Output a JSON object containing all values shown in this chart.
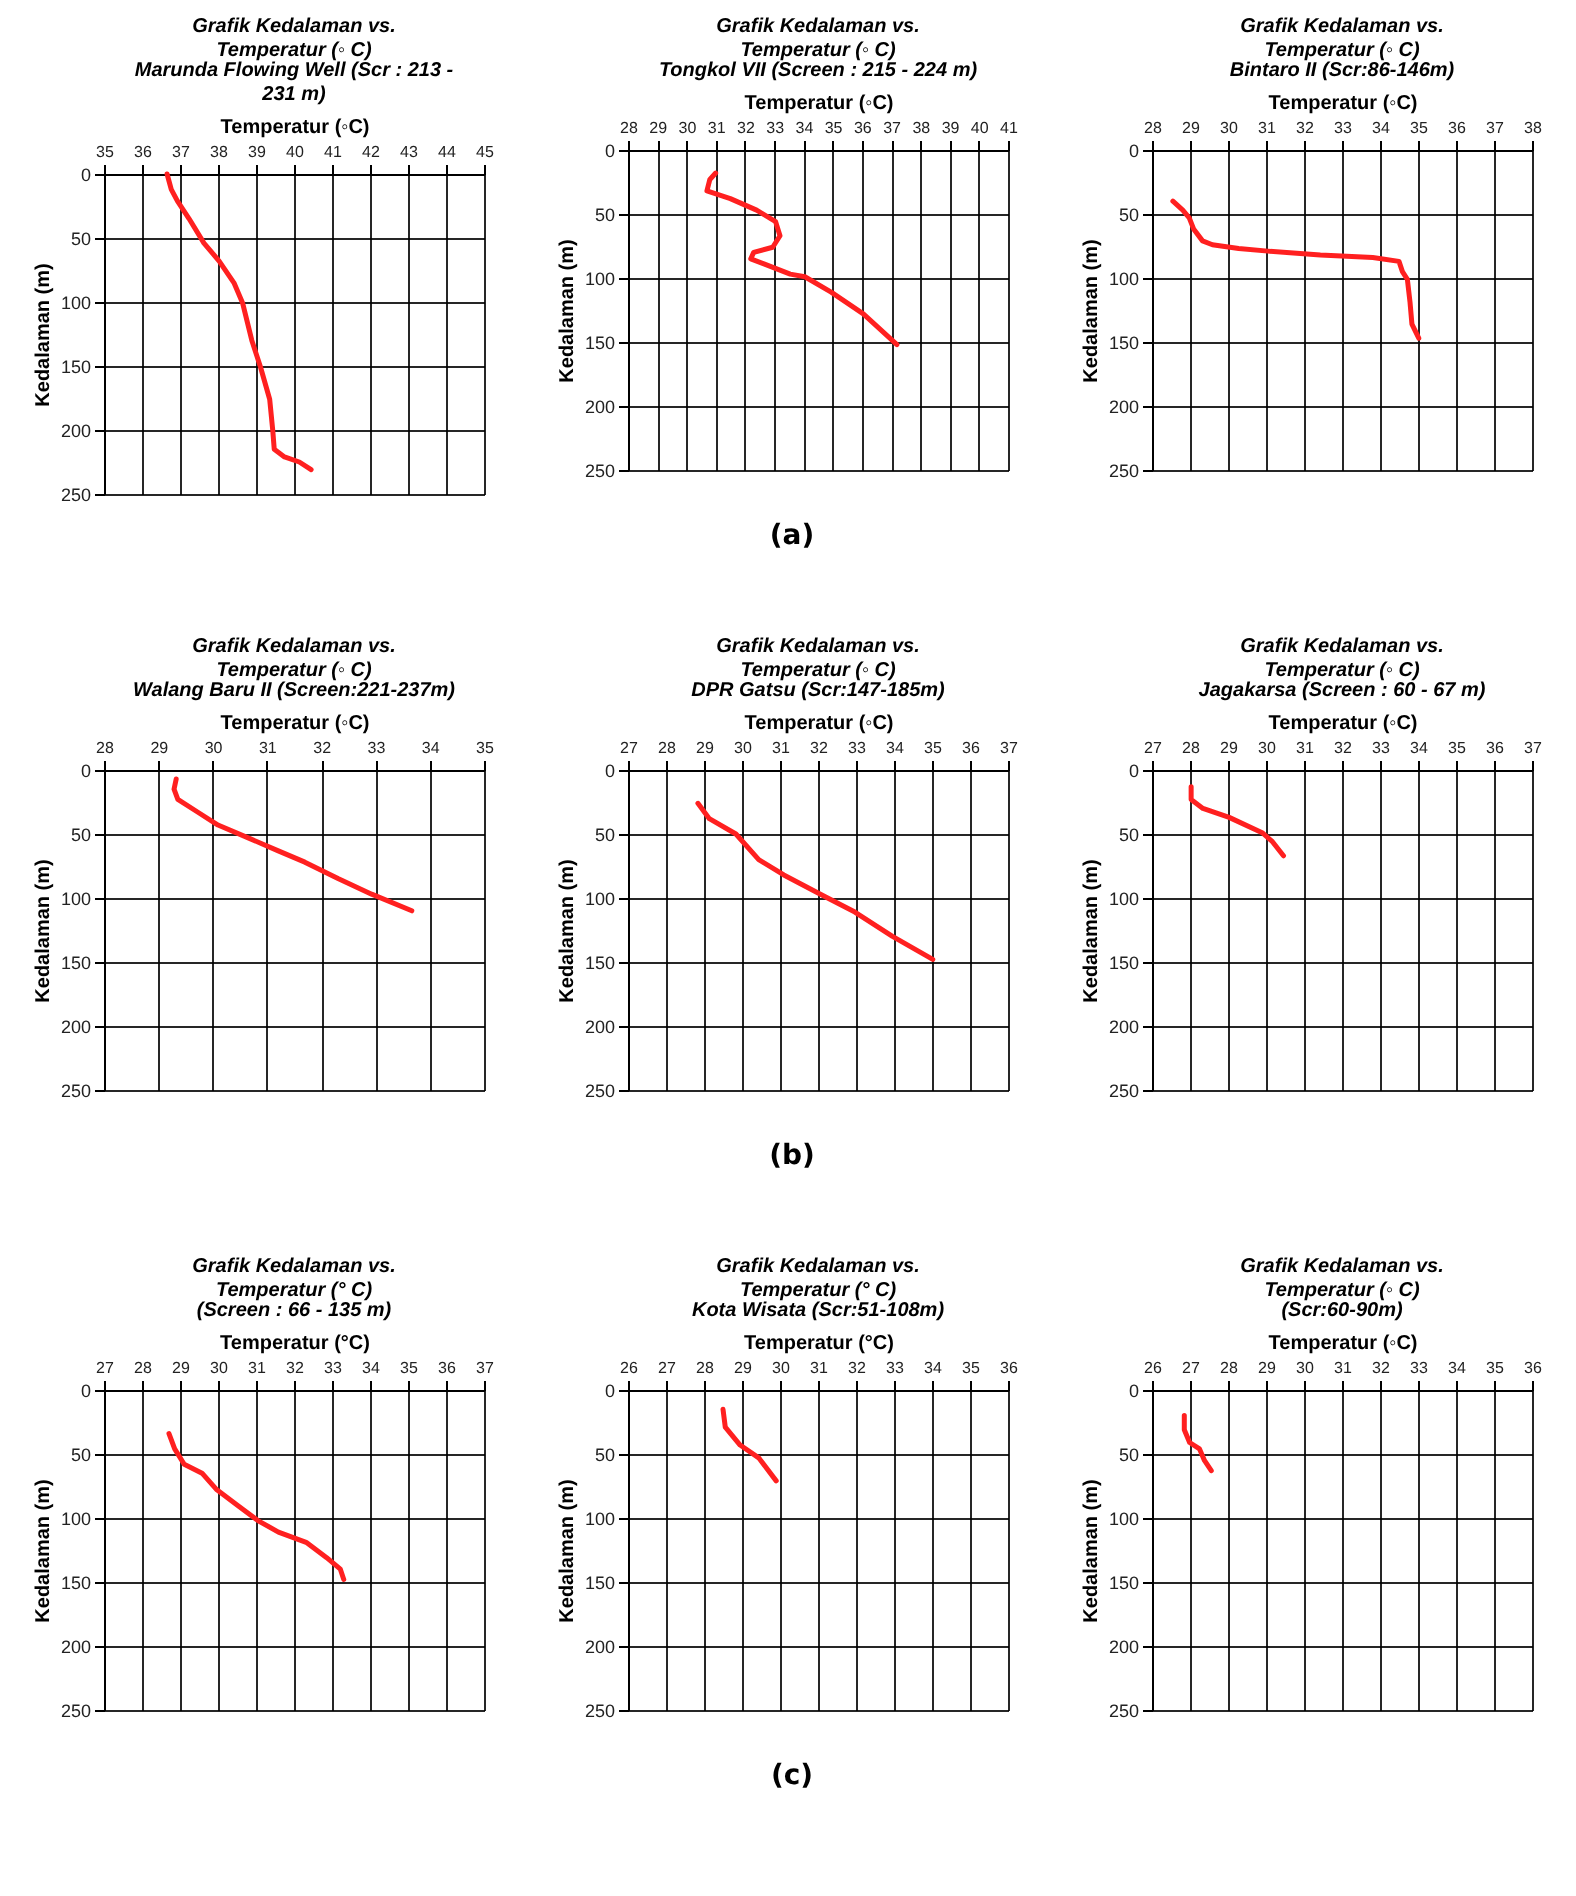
{
  "chart_data": [
    {
      "type": "line",
      "title": "Grafik Kedalaman vs. Temperatur (◦ C)",
      "subtitle": "Marunda Flowing Well (Scr : 213 - 231 m)",
      "xlabel": "Temperatur (◦C)",
      "ylabel": "Kedalaman (m)",
      "xlim": [
        35,
        45
      ],
      "xticks": [
        35,
        36,
        37,
        38,
        39,
        40,
        41,
        42,
        43,
        44,
        45
      ],
      "ylim": [
        250,
        0
      ],
      "yticks": [
        0,
        50,
        100,
        150,
        200,
        250
      ],
      "grid": true,
      "line_style": "solid",
      "series": [
        {
          "color": "#ff2020",
          "x": [
            36.66,
            36.77,
            36.93,
            37.24,
            37.63,
            38.03,
            38.42,
            38.65,
            38.89,
            39.12,
            39.36,
            39.44,
            39.48,
            39.75,
            40.14,
            40.45
          ],
          "values": [
            0,
            12,
            21,
            35,
            54,
            68,
            85,
            101,
            130,
            151,
            176,
            200,
            215,
            221,
            225,
            231
          ]
        }
      ]
    },
    {
      "type": "line",
      "title": "Grafik Kedalaman vs. Temperatur (◦ C)",
      "subtitle": "Tongkol VII (Screen : 215 - 224 m)",
      "xlabel": "Temperatur (◦C)",
      "ylabel": "Kedalaman (m)",
      "xlim": [
        28,
        41
      ],
      "xticks": [
        28,
        29,
        30,
        31,
        32,
        33,
        34,
        35,
        36,
        37,
        38,
        39,
        40,
        41
      ],
      "ylim": [
        250,
        0
      ],
      "yticks": [
        0,
        50,
        100,
        150,
        200,
        250
      ],
      "grid": true,
      "line_style": "solid",
      "annotations": [
        "(a)"
      ],
      "series": [
        {
          "color": "#ff2020",
          "x": [
            31.0,
            30.8,
            30.7,
            31.5,
            32.4,
            33.05,
            33.2,
            32.95,
            32.3,
            32.2,
            32.65,
            33.55,
            34.05,
            34.95,
            36.05,
            37.2
          ],
          "values": [
            18,
            23,
            32,
            38,
            47,
            56,
            67,
            76,
            80,
            85,
            89,
            97,
            99,
            111,
            128,
            152
          ]
        }
      ]
    },
    {
      "type": "line",
      "title": "Grafik Kedalaman vs. Temperatur (◦ C)",
      "subtitle": "Bintaro II (Scr:86-146m)",
      "xlabel": "Temperatur (◦C)",
      "ylabel": "Kedalaman (m)",
      "xlim": [
        28,
        38
      ],
      "xticks": [
        28,
        29,
        30,
        31,
        32,
        33,
        34,
        35,
        36,
        37,
        38
      ],
      "ylim": [
        250,
        0
      ],
      "yticks": [
        0,
        50,
        100,
        150,
        200,
        250
      ],
      "grid": true,
      "line_style": "solid",
      "series": [
        {
          "color": "#ff2020",
          "x": [
            28.55,
            28.81,
            28.98,
            29.1,
            29.33,
            29.59,
            30.28,
            31.05,
            32.43,
            33.81,
            34.5,
            34.59,
            34.72,
            34.79,
            34.84,
            35.02
          ],
          "values": [
            40,
            47,
            53,
            62,
            71,
            74,
            77,
            79,
            82,
            84,
            87,
            95,
            101,
            119,
            136,
            147
          ]
        }
      ]
    },
    {
      "type": "line",
      "title": "Grafik Kedalaman vs. Temperatur (◦ C)",
      "subtitle": "Walang Baru II (Screen:221-237m)",
      "xlabel": "Temperatur (◦C)",
      "ylabel": "Kedalaman (m)",
      "xlim": [
        28,
        35
      ],
      "xticks": [
        28,
        29,
        30,
        31,
        32,
        33,
        34,
        35
      ],
      "ylim": [
        250,
        0
      ],
      "yticks": [
        0,
        50,
        100,
        150,
        200,
        250
      ],
      "grid": true,
      "line_style": "solid",
      "series": [
        {
          "color": "#ff2020",
          "x": [
            29.33,
            29.29,
            29.36,
            29.73,
            30.1,
            30.71,
            31.2,
            31.7,
            32.32,
            32.93,
            33.67
          ],
          "values": [
            7,
            15,
            23,
            33,
            43,
            54,
            63,
            72,
            85,
            97,
            110
          ]
        }
      ]
    },
    {
      "type": "line",
      "title": "Grafik Kedalaman vs. Temperatur (◦ C)",
      "subtitle": "DPR Gatsu (Scr:147-185m)",
      "xlabel": "Temperatur (◦C)",
      "ylabel": "Kedalaman (m)",
      "xlim": [
        27,
        37
      ],
      "xticks": [
        27,
        28,
        29,
        30,
        31,
        32,
        33,
        34,
        35,
        36,
        37
      ],
      "ylim": [
        250,
        0
      ],
      "yticks": [
        0,
        50,
        100,
        150,
        200,
        250
      ],
      "grid": true,
      "line_style": "solid",
      "annotations": [
        "(b)"
      ],
      "series": [
        {
          "color": "#ff2020",
          "x": [
            28.84,
            29.14,
            29.84,
            30.44,
            31.1,
            32.19,
            32.97,
            33.96,
            35.02
          ],
          "values": [
            26,
            38,
            50,
            70,
            82,
            99,
            111,
            130,
            148
          ]
        }
      ]
    },
    {
      "type": "line",
      "title": "Grafik Kedalaman vs. Temperatur (◦ C)",
      "subtitle": "Jagakarsa (Screen : 60 - 67 m)",
      "xlabel": "Temperatur (◦C)",
      "ylabel": "Kedalaman (m)",
      "xlim": [
        27,
        37
      ],
      "xticks": [
        27,
        28,
        29,
        30,
        31,
        32,
        33,
        34,
        35,
        36,
        37
      ],
      "ylim": [
        250,
        0
      ],
      "yticks": [
        0,
        50,
        100,
        150,
        200,
        250
      ],
      "grid": true,
      "line_style": "solid",
      "series": [
        {
          "color": "#ff2020",
          "x": [
            28.03,
            28.03,
            28.34,
            29.03,
            29.9,
            30.17,
            30.46
          ],
          "values": [
            13,
            23,
            30,
            37,
            49,
            56,
            67
          ]
        }
      ]
    },
    {
      "type": "line",
      "title": "Grafik Kedalaman vs. Temperatur (° C)",
      "subtitle": "(Screen : 66 - 135 m)",
      "xlabel": "Temperatur (°C)",
      "ylabel": "Kedalaman (m)",
      "xlim": [
        27,
        37
      ],
      "xticks": [
        27,
        28,
        29,
        30,
        31,
        32,
        33,
        34,
        35,
        36,
        37
      ],
      "ylim": [
        250,
        0
      ],
      "yticks": [
        0,
        50,
        100,
        150,
        200,
        250
      ],
      "grid": true,
      "line_style": "solid",
      "series": [
        {
          "color": "#ff2020",
          "x": [
            28.71,
            28.86,
            29.11,
            29.58,
            29.97,
            30.51,
            31.05,
            31.59,
            32.32,
            32.86,
            33.22,
            33.31
          ],
          "values": [
            34,
            46,
            58,
            65,
            78,
            90,
            102,
            111,
            119,
            131,
            140,
            148
          ]
        }
      ]
    },
    {
      "type": "line",
      "title": "Grafik Kedalaman vs. Temperatur (° C)",
      "subtitle": "Kota Wisata (Scr:51-108m)",
      "xlabel": "Temperatur (°C)",
      "ylabel": "Kedalaman (m)",
      "xlim": [
        26,
        36
      ],
      "xticks": [
        26,
        27,
        28,
        29,
        30,
        31,
        32,
        33,
        34,
        35,
        36
      ],
      "ylim": [
        250,
        0
      ],
      "yticks": [
        0,
        50,
        100,
        150,
        200,
        250
      ],
      "grid": true,
      "line_style": "solid",
      "annotations": [
        "(c)"
      ],
      "series": [
        {
          "color": "#ff2020",
          "x": [
            28.5,
            28.56,
            28.95,
            29.44,
            29.9
          ],
          "values": [
            15,
            29,
            43,
            53,
            71
          ]
        }
      ]
    },
    {
      "type": "line",
      "title": "Grafik Kedalaman vs. Temperatur (◦ C)",
      "subtitle": "(Scr:60-90m)",
      "xlabel": "Temperatur (◦C)",
      "ylabel": "Kedalaman (m)",
      "xlim": [
        26,
        36
      ],
      "xticks": [
        26,
        27,
        28,
        29,
        30,
        31,
        32,
        33,
        34,
        35,
        36
      ],
      "ylim": [
        250,
        0
      ],
      "yticks": [
        0,
        50,
        100,
        150,
        200,
        250
      ],
      "grid": true,
      "line_style": "solid",
      "series": [
        {
          "color": "#ff2020",
          "x": [
            26.85,
            26.85,
            26.99,
            27.25,
            27.38,
            27.56
          ],
          "values": [
            20,
            31,
            41,
            46,
            55,
            63
          ]
        }
      ]
    }
  ]
}
